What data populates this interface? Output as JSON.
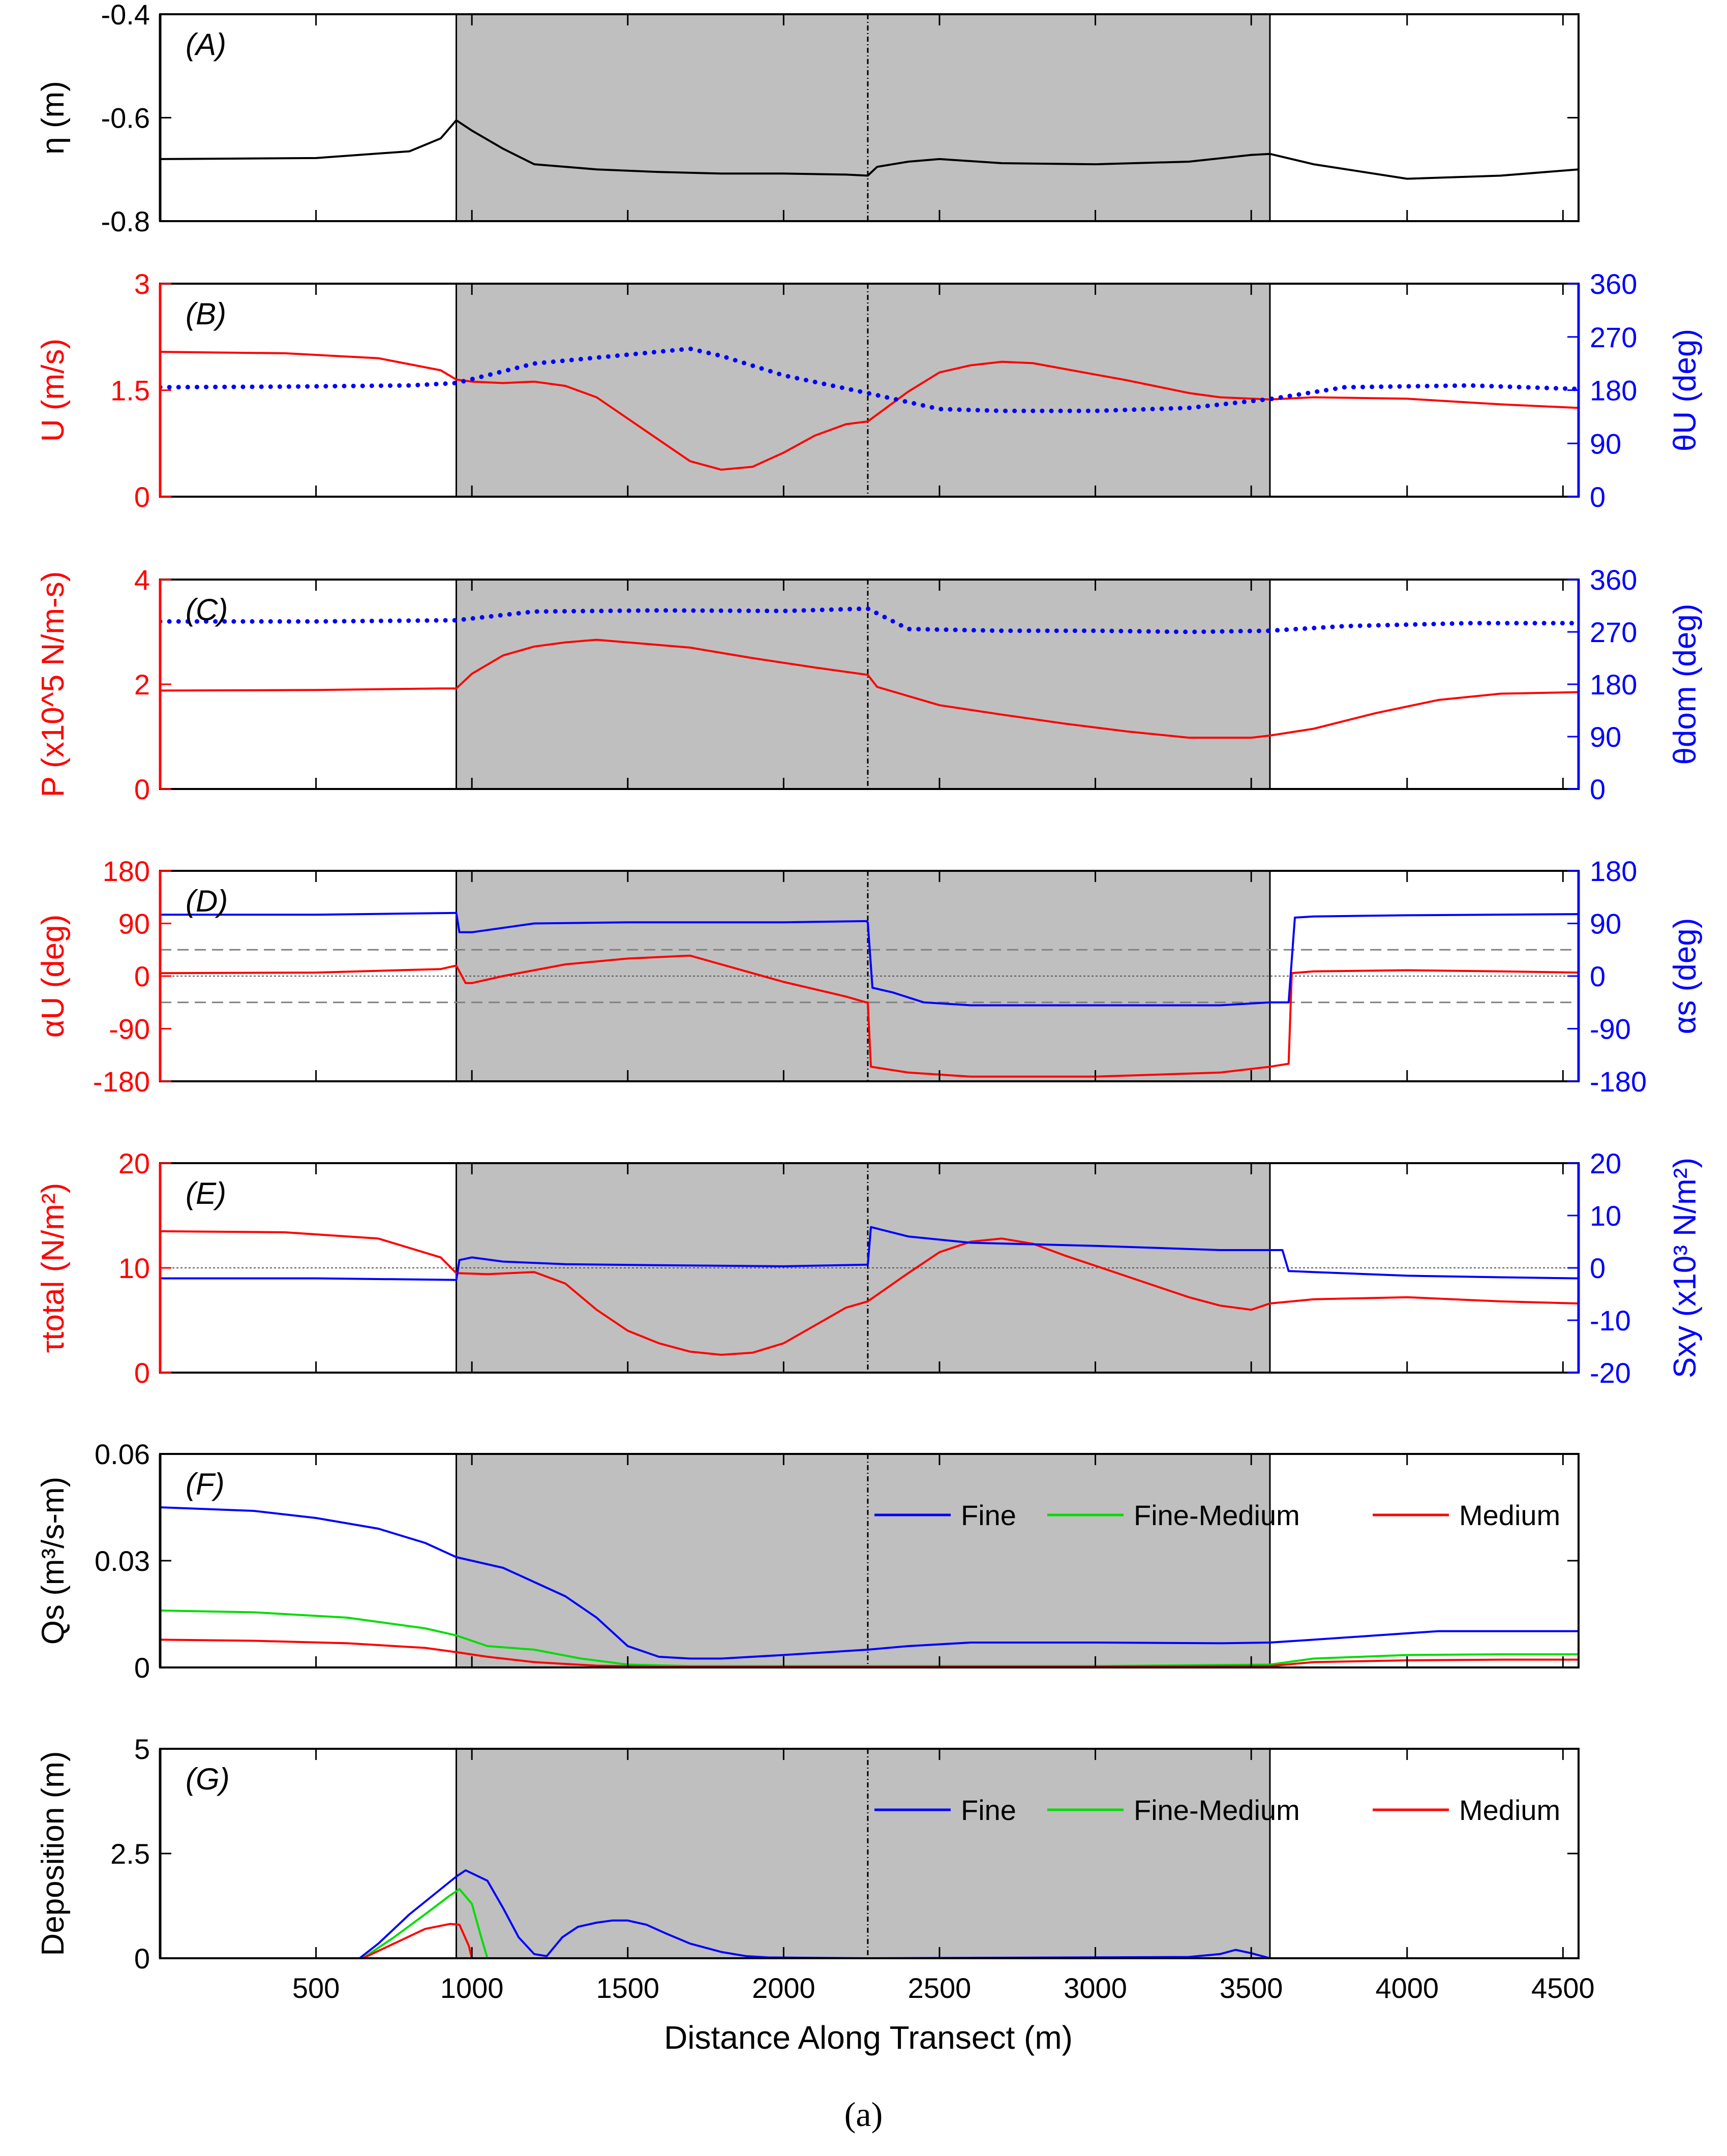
{
  "caption": "(a)",
  "xaxis": {
    "label": "Distance Along Transect (m)",
    "range": [
      0,
      4550
    ],
    "ticks": [
      500,
      1000,
      1500,
      2000,
      2500,
      3000,
      3500,
      4000,
      4500
    ]
  },
  "shading": {
    "regions": [
      [
        950,
        3560
      ]
    ],
    "dashed_line_at": 2270,
    "solid_lines_at": [
      950,
      3560
    ]
  },
  "colors": {
    "red": "#ff0000",
    "blue": "#0000ff",
    "green": "#00dd00",
    "black": "#000000",
    "shade": "#bfbfbf",
    "ref": "#808080"
  },
  "chart_data": [
    {
      "id": "A",
      "type": "line",
      "panel_label": "(A)",
      "left_axis": {
        "label": "η (m)",
        "range": [
          -0.8,
          -0.4
        ],
        "ticks": [
          "-0.4",
          "-0.6",
          "-0.8"
        ],
        "color": "black"
      },
      "series": [
        {
          "name": "eta",
          "axis": "left",
          "color": "black",
          "x": [
            0,
            500,
            800,
            900,
            950,
            1000,
            1100,
            1200,
            1400,
            1600,
            1800,
            2000,
            2200,
            2270,
            2300,
            2400,
            2500,
            2700,
            3000,
            3300,
            3500,
            3560,
            3700,
            4000,
            4300,
            4550
          ],
          "y": [
            -0.68,
            -0.678,
            -0.665,
            -0.64,
            -0.605,
            -0.625,
            -0.66,
            -0.69,
            -0.7,
            -0.705,
            -0.708,
            -0.708,
            -0.71,
            -0.712,
            -0.695,
            -0.685,
            -0.68,
            -0.688,
            -0.69,
            -0.685,
            -0.672,
            -0.67,
            -0.69,
            -0.718,
            -0.712,
            -0.7
          ]
        }
      ]
    },
    {
      "id": "B",
      "type": "line",
      "panel_label": "(B)",
      "left_axis": {
        "label": "U (m/s)",
        "range": [
          0,
          3
        ],
        "ticks": [
          "0",
          "1.5",
          "3"
        ],
        "color": "red"
      },
      "right_axis": {
        "label": "θU (deg)",
        "range": [
          0,
          360
        ],
        "ticks": [
          "0",
          "90",
          "180",
          "270",
          "360"
        ],
        "color": "blue"
      },
      "series": [
        {
          "name": "U",
          "axis": "left",
          "color": "red",
          "style": "solid",
          "x": [
            0,
            400,
            700,
            900,
            950,
            1000,
            1100,
            1200,
            1300,
            1400,
            1500,
            1600,
            1700,
            1800,
            1900,
            2000,
            2100,
            2200,
            2270,
            2400,
            2500,
            2600,
            2700,
            2800,
            2900,
            3000,
            3100,
            3200,
            3300,
            3400,
            3560,
            3700,
            4000,
            4300,
            4550
          ],
          "y": [
            2.04,
            2.02,
            1.95,
            1.78,
            1.65,
            1.62,
            1.6,
            1.62,
            1.56,
            1.4,
            1.1,
            0.8,
            0.5,
            0.38,
            0.42,
            0.62,
            0.86,
            1.02,
            1.06,
            1.48,
            1.75,
            1.85,
            1.9,
            1.88,
            1.8,
            1.72,
            1.64,
            1.55,
            1.46,
            1.4,
            1.37,
            1.4,
            1.38,
            1.3,
            1.25
          ]
        },
        {
          "name": "θU",
          "axis": "right",
          "color": "blue",
          "style": "dotted",
          "x": [
            0,
            400,
            800,
            950,
            1200,
            1500,
            1700,
            1800,
            2000,
            2270,
            2500,
            2700,
            3000,
            3300,
            3560,
            3800,
            4200,
            4550
          ],
          "y": [
            185,
            186,
            188,
            192,
            225,
            240,
            250,
            238,
            205,
            175,
            148,
            145,
            145,
            150,
            165,
            185,
            188,
            182
          ]
        }
      ]
    },
    {
      "id": "C",
      "type": "line",
      "panel_label": "(C)",
      "left_axis": {
        "label": "P (x10^5 N/m-s)",
        "range": [
          0,
          4
        ],
        "ticks": [
          "0",
          "2",
          "4"
        ],
        "color": "red"
      },
      "right_axis": {
        "label": "θdom (deg)",
        "range": [
          0,
          360
        ],
        "ticks": [
          "0",
          "90",
          "180",
          "270",
          "360"
        ],
        "color": "blue"
      },
      "series": [
        {
          "name": "P",
          "axis": "left",
          "color": "red",
          "style": "solid",
          "x": [
            0,
            500,
            900,
            950,
            1000,
            1100,
            1200,
            1300,
            1400,
            1500,
            1700,
            1900,
            2100,
            2270,
            2300,
            2500,
            2700,
            2900,
            3100,
            3300,
            3500,
            3560,
            3700,
            3900,
            4100,
            4300,
            4550
          ],
          "y": [
            1.88,
            1.89,
            1.92,
            1.92,
            2.2,
            2.55,
            2.72,
            2.8,
            2.85,
            2.8,
            2.7,
            2.5,
            2.32,
            2.18,
            1.95,
            1.6,
            1.42,
            1.25,
            1.1,
            0.98,
            0.98,
            1.02,
            1.15,
            1.45,
            1.7,
            1.82,
            1.85
          ]
        },
        {
          "name": "θdom",
          "axis": "right",
          "color": "blue",
          "style": "dotted",
          "x": [
            0,
            500,
            950,
            1200,
            1600,
            2000,
            2270,
            2400,
            2700,
            3000,
            3300,
            3560,
            3800,
            4200,
            4550
          ],
          "y": [
            288,
            288,
            290,
            305,
            307,
            306,
            310,
            275,
            272,
            272,
            270,
            272,
            280,
            285,
            285
          ]
        }
      ]
    },
    {
      "id": "D",
      "type": "line",
      "panel_label": "(D)",
      "left_axis": {
        "label": "αU (deg)",
        "range": [
          -180,
          180
        ],
        "ticks": [
          "-180",
          "-90",
          "0",
          "90",
          "180"
        ],
        "color": "red"
      },
      "right_axis": {
        "label": "αs (deg)",
        "range": [
          -180,
          180
        ],
        "ticks": [
          "-180",
          "-90",
          "0",
          "90",
          "180"
        ],
        "color": "blue"
      },
      "reference_lines": [
        {
          "y": 45,
          "style": "dashed"
        },
        {
          "y": -45,
          "style": "dashed"
        },
        {
          "y": 0,
          "style": "dotted"
        }
      ],
      "series": [
        {
          "name": "αU",
          "axis": "left",
          "color": "red",
          "style": "solid",
          "x": [
            0,
            500,
            900,
            950,
            980,
            1000,
            1100,
            1300,
            1500,
            1700,
            1800,
            2000,
            2200,
            2265,
            2270,
            2280,
            2400,
            2600,
            3000,
            3400,
            3560,
            3620,
            3630,
            3700,
            4000,
            4300,
            4550
          ],
          "y": [
            5,
            6,
            12,
            18,
            -12,
            -12,
            0,
            20,
            30,
            35,
            20,
            -10,
            -35,
            -45,
            -45,
            -155,
            -165,
            -172,
            -172,
            -165,
            -155,
            -150,
            5,
            8,
            10,
            8,
            6
          ]
        },
        {
          "name": "αs",
          "axis": "right",
          "color": "blue",
          "style": "solid",
          "x": [
            0,
            500,
            950,
            960,
            1000,
            1200,
            1500,
            2000,
            2265,
            2270,
            2285,
            2350,
            2450,
            2600,
            3000,
            3400,
            3560,
            3620,
            3640,
            3700,
            4000,
            4550
          ],
          "y": [
            105,
            105,
            108,
            75,
            75,
            90,
            92,
            92,
            94,
            92,
            -20,
            -28,
            -45,
            -50,
            -50,
            -50,
            -45,
            -45,
            100,
            102,
            104,
            106
          ]
        }
      ]
    },
    {
      "id": "E",
      "type": "line",
      "panel_label": "(E)",
      "left_axis": {
        "label": "τtotal (N/m²)",
        "range": [
          0,
          20
        ],
        "ticks": [
          "0",
          "10",
          "20"
        ],
        "color": "red"
      },
      "right_axis": {
        "label": "Sxy (x10³ N/m²)",
        "range": [
          -20,
          20
        ],
        "ticks": [
          "-20",
          "-10",
          "0",
          "10",
          "20"
        ],
        "color": "blue"
      },
      "reference_lines": [
        {
          "y": 10,
          "style": "dotted"
        }
      ],
      "series": [
        {
          "name": "τtotal",
          "axis": "left",
          "color": "red",
          "style": "solid",
          "x": [
            0,
            400,
            700,
            900,
            950,
            1050,
            1200,
            1300,
            1400,
            1500,
            1600,
            1700,
            1800,
            1900,
            2000,
            2100,
            2200,
            2270,
            2400,
            2500,
            2600,
            2700,
            2800,
            2900,
            3000,
            3100,
            3200,
            3300,
            3400,
            3500,
            3560,
            3700,
            4000,
            4300,
            4550
          ],
          "y": [
            13.5,
            13.4,
            12.8,
            11,
            9.5,
            9.4,
            9.6,
            8.5,
            6,
            4,
            2.8,
            2,
            1.7,
            1.9,
            2.8,
            4.5,
            6.2,
            6.8,
            9.5,
            11.5,
            12.5,
            12.8,
            12.3,
            11.2,
            10.2,
            9.2,
            8.2,
            7.2,
            6.4,
            6,
            6.6,
            7,
            7.2,
            6.8,
            6.6
          ]
        },
        {
          "name": "Sxy",
          "axis": "right",
          "color": "blue",
          "style": "solid",
          "x": [
            0,
            500,
            950,
            960,
            1000,
            1100,
            1300,
            1600,
            2000,
            2265,
            2270,
            2280,
            2400,
            2600,
            3000,
            3400,
            3560,
            3600,
            3620,
            3700,
            4000,
            4300,
            4550
          ],
          "y": [
            -2,
            -2,
            -2.3,
            1.5,
            2,
            1.2,
            0.7,
            0.5,
            0.3,
            0.6,
            0.6,
            7.8,
            6,
            4.8,
            4.2,
            3.4,
            3.4,
            3.4,
            -0.6,
            -0.8,
            -1.5,
            -1.8,
            -2
          ]
        }
      ]
    },
    {
      "id": "F",
      "type": "line",
      "panel_label": "(F)",
      "left_axis": {
        "label": "Qs (m³/s-m)",
        "range": [
          0,
          0.06
        ],
        "ticks": [
          "0",
          "0.03",
          "0.06"
        ],
        "color": "black"
      },
      "legend": [
        "Fine",
        "Fine-Medium",
        "Medium"
      ],
      "series": [
        {
          "name": "Fine",
          "axis": "left",
          "color": "blue",
          "style": "solid",
          "x": [
            0,
            300,
            500,
            700,
            850,
            950,
            1050,
            1100,
            1200,
            1300,
            1400,
            1500,
            1600,
            1700,
            1800,
            2000,
            2270,
            2400,
            2600,
            3000,
            3400,
            3560,
            3700,
            3900,
            4100,
            4300,
            4550
          ],
          "y": [
            0.045,
            0.044,
            0.042,
            0.039,
            0.035,
            0.031,
            0.029,
            0.028,
            0.024,
            0.02,
            0.014,
            0.006,
            0.003,
            0.0025,
            0.0025,
            0.0035,
            0.005,
            0.006,
            0.007,
            0.007,
            0.0068,
            0.007,
            0.0078,
            0.009,
            0.0102,
            0.0102,
            0.0102
          ]
        },
        {
          "name": "Fine-Medium",
          "axis": "left",
          "color": "green",
          "style": "solid",
          "x": [
            0,
            300,
            600,
            850,
            950,
            1050,
            1200,
            1350,
            1500,
            1700,
            2270,
            3000,
            3560,
            3700,
            4000,
            4300,
            4550
          ],
          "y": [
            0.016,
            0.0155,
            0.014,
            0.011,
            0.009,
            0.006,
            0.005,
            0.0025,
            0.0008,
            0.0004,
            0.0004,
            0.0004,
            0.0008,
            0.0025,
            0.0035,
            0.0037,
            0.0037
          ]
        },
        {
          "name": "Medium",
          "axis": "left",
          "color": "red",
          "style": "solid",
          "x": [
            0,
            300,
            600,
            850,
            950,
            1050,
            1200,
            1400,
            1600,
            2270,
            3000,
            3560,
            3700,
            4000,
            4300,
            4550
          ],
          "y": [
            0.0078,
            0.0075,
            0.0068,
            0.0055,
            0.0043,
            0.003,
            0.0015,
            0.0005,
            0.0002,
            0.0002,
            0.0002,
            0.0004,
            0.0015,
            0.002,
            0.0022,
            0.0022
          ]
        }
      ]
    },
    {
      "id": "G",
      "type": "line",
      "panel_label": "(G)",
      "left_axis": {
        "label": "Deposition (m)",
        "range": [
          0,
          5
        ],
        "ticks": [
          "0",
          "2.5",
          "5"
        ],
        "color": "black"
      },
      "legend": [
        "Fine",
        "Fine-Medium",
        "Medium"
      ],
      "series": [
        {
          "name": "Fine",
          "axis": "left",
          "color": "blue",
          "style": "solid",
          "x": [
            0,
            640,
            700,
            800,
            900,
            950,
            980,
            1050,
            1100,
            1150,
            1200,
            1240,
            1290,
            1340,
            1400,
            1450,
            1500,
            1560,
            1620,
            1700,
            1800,
            1880,
            1950,
            2100,
            2270,
            3300,
            3400,
            3450,
            3500,
            3560,
            4550
          ],
          "y": [
            0,
            0,
            0.35,
            1.05,
            1.65,
            1.95,
            2.1,
            1.85,
            1.2,
            0.5,
            0.1,
            0.05,
            0.5,
            0.75,
            0.85,
            0.9,
            0.9,
            0.8,
            0.6,
            0.35,
            0.15,
            0.05,
            0.02,
            0.01,
            0,
            0.03,
            0.1,
            0.2,
            0.12,
            0,
            0
          ]
        },
        {
          "name": "Fine-Medium",
          "axis": "left",
          "color": "green",
          "style": "solid",
          "x": [
            0,
            650,
            750,
            850,
            930,
            960,
            1000,
            1030,
            1050,
            4550
          ],
          "y": [
            0,
            0,
            0.5,
            1.05,
            1.5,
            1.65,
            1.3,
            0.5,
            0,
            0
          ]
        },
        {
          "name": "Medium",
          "axis": "left",
          "color": "red",
          "style": "solid",
          "x": [
            0,
            650,
            750,
            850,
            930,
            960,
            990,
            1000,
            4550
          ],
          "y": [
            0,
            0,
            0.35,
            0.7,
            0.82,
            0.8,
            0.3,
            0,
            0
          ]
        }
      ]
    }
  ]
}
